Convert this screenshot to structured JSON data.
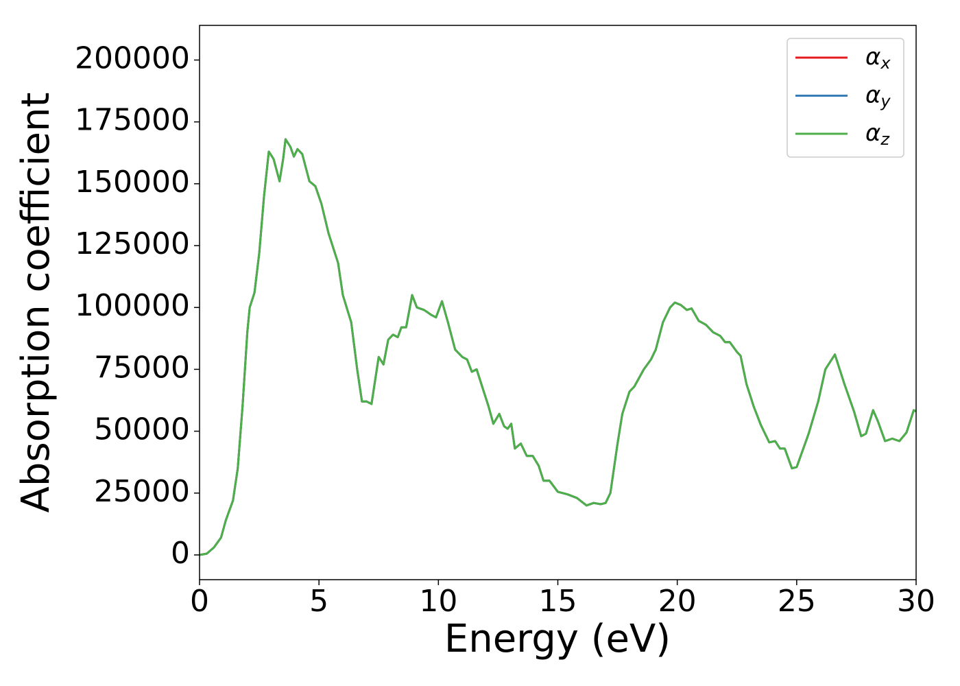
{
  "chart_data": {
    "type": "line",
    "x_label": "Energy (eV)",
    "y_label": "Absorption coefficient",
    "x": [
      0,
      0.3,
      0.6,
      0.9,
      1.1,
      1.4,
      1.6,
      1.8,
      2.0,
      2.1,
      2.3,
      2.5,
      2.7,
      2.9,
      3.1,
      3.35,
      3.5,
      3.6,
      3.8,
      3.95,
      4.1,
      4.3,
      4.6,
      4.85,
      5.1,
      5.4,
      5.8,
      6.0,
      6.35,
      6.6,
      6.8,
      7.0,
      7.2,
      7.5,
      7.7,
      7.9,
      8.1,
      8.3,
      8.45,
      8.65,
      8.9,
      9.1,
      9.4,
      9.7,
      9.9,
      10.15,
      10.4,
      10.7,
      11.0,
      11.2,
      11.4,
      11.6,
      11.9,
      12.1,
      12.3,
      12.55,
      12.75,
      12.9,
      13.05,
      13.2,
      13.45,
      13.7,
      13.95,
      14.2,
      14.4,
      14.65,
      15.0,
      15.4,
      15.8,
      16.2,
      16.5,
      16.8,
      17.0,
      17.2,
      17.5,
      17.7,
      18.0,
      18.2,
      18.6,
      18.9,
      19.1,
      19.4,
      19.7,
      19.9,
      20.15,
      20.4,
      20.6,
      20.9,
      21.2,
      21.5,
      21.8,
      22.0,
      22.2,
      22.5,
      22.65,
      22.9,
      23.2,
      23.5,
      23.85,
      24.1,
      24.3,
      24.5,
      24.8,
      25.0,
      25.5,
      25.9,
      26.2,
      26.6,
      27.0,
      27.4,
      27.7,
      27.9,
      28.2,
      28.4,
      28.7,
      29.0,
      29.3,
      29.6,
      29.9,
      30
    ],
    "series": [
      {
        "name": "αx",
        "color": "#e41a1c",
        "values": [
          0,
          500,
          3000,
          7000,
          14000,
          22000,
          35000,
          60000,
          90000,
          100000,
          106000,
          122000,
          145000,
          163000,
          160000,
          151000,
          160000,
          168000,
          165000,
          161000,
          164000,
          162000,
          151000,
          149000,
          142000,
          130000,
          118000,
          105000,
          94000,
          75000,
          62000,
          62000,
          61000,
          80000,
          77000,
          87000,
          89000,
          88000,
          92000,
          92000,
          105000,
          100000,
          99000,
          97000,
          96000,
          102500,
          94000,
          83000,
          80000,
          79000,
          74000,
          75000,
          66000,
          60000,
          53000,
          57000,
          52000,
          51000,
          53000,
          43000,
          45000,
          40000,
          40000,
          36000,
          30000,
          30000,
          25500,
          24500,
          23000,
          20000,
          21000,
          20500,
          21000,
          25000,
          45000,
          57000,
          66000,
          68000,
          75000,
          79000,
          83000,
          94000,
          100000,
          102000,
          101000,
          99000,
          99600,
          94600,
          93000,
          90000,
          88500,
          86000,
          86000,
          82000,
          80500,
          69000,
          60000,
          52500,
          45500,
          46000,
          43000,
          43000,
          35000,
          35500,
          49000,
          62000,
          75000,
          81000,
          69000,
          58000,
          48000,
          49000,
          58500,
          54000,
          46000,
          47000,
          46000,
          49500,
          58500,
          58000
        ]
      },
      {
        "name": "αy",
        "color": "#377eb8",
        "values": [
          0,
          500,
          3000,
          7000,
          14000,
          22000,
          35000,
          60000,
          90000,
          100000,
          106000,
          122000,
          145000,
          163000,
          160000,
          151000,
          160000,
          168000,
          165000,
          161000,
          164000,
          162000,
          151000,
          149000,
          142000,
          130000,
          118000,
          105000,
          94000,
          75000,
          62000,
          62000,
          61000,
          80000,
          77000,
          87000,
          89000,
          88000,
          92000,
          92000,
          105000,
          100000,
          99000,
          97000,
          96000,
          102500,
          94000,
          83000,
          80000,
          79000,
          74000,
          75000,
          66000,
          60000,
          53000,
          57000,
          52000,
          51000,
          53000,
          43000,
          45000,
          40000,
          40000,
          36000,
          30000,
          30000,
          25500,
          24500,
          23000,
          20000,
          21000,
          20500,
          21000,
          25000,
          45000,
          57000,
          66000,
          68000,
          75000,
          79000,
          83000,
          94000,
          100000,
          102000,
          101000,
          99000,
          99600,
          94600,
          93000,
          90000,
          88500,
          86000,
          86000,
          82000,
          80500,
          69000,
          60000,
          52500,
          45500,
          46000,
          43000,
          43000,
          35000,
          35500,
          49000,
          62000,
          75000,
          81000,
          69000,
          58000,
          48000,
          49000,
          58500,
          54000,
          46000,
          47000,
          46000,
          49500,
          58500,
          58000
        ]
      },
      {
        "name": "αz",
        "color": "#4daf4a",
        "values": [
          0,
          500,
          3000,
          7000,
          14000,
          22000,
          35000,
          60000,
          90000,
          100000,
          106000,
          122000,
          145000,
          163000,
          160000,
          151000,
          160000,
          168000,
          165000,
          161000,
          164000,
          162000,
          151000,
          149000,
          142000,
          130000,
          118000,
          105000,
          94000,
          75000,
          62000,
          62000,
          61000,
          80000,
          77000,
          87000,
          89000,
          88000,
          92000,
          92000,
          105000,
          100000,
          99000,
          97000,
          96000,
          102500,
          94000,
          83000,
          80000,
          79000,
          74000,
          75000,
          66000,
          60000,
          53000,
          57000,
          52000,
          51000,
          53000,
          43000,
          45000,
          40000,
          40000,
          36000,
          30000,
          30000,
          25500,
          24500,
          23000,
          20000,
          21000,
          20500,
          21000,
          25000,
          45000,
          57000,
          66000,
          68000,
          75000,
          79000,
          83000,
          94000,
          100000,
          102000,
          101000,
          99000,
          99600,
          94600,
          93000,
          90000,
          88500,
          86000,
          86000,
          82000,
          80500,
          69000,
          60000,
          52500,
          45500,
          46000,
          43000,
          43000,
          35000,
          35500,
          49000,
          62000,
          75000,
          81000,
          69000,
          58000,
          48000,
          49000,
          58500,
          54000,
          46000,
          47000,
          46000,
          49500,
          58500,
          58000
        ]
      }
    ],
    "xlim": [
      0,
      30
    ],
    "xticks": [
      0,
      5,
      10,
      15,
      20,
      25,
      30
    ],
    "ylim": [
      -10000,
      214000
    ],
    "yticks": [
      0,
      25000,
      50000,
      75000,
      100000,
      125000,
      150000,
      175000,
      200000
    ],
    "legend": "upper right",
    "grid": false
  }
}
